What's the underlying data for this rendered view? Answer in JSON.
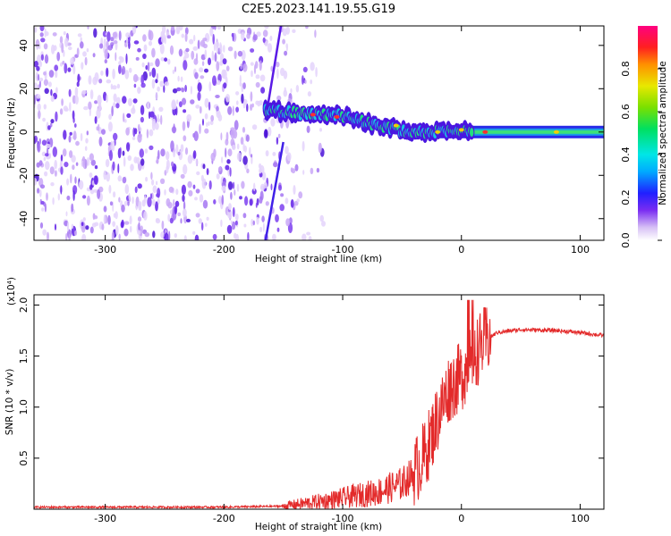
{
  "title": "C2E5.2023.141.19.55.G19",
  "chart_data": [
    {
      "type": "heatmap",
      "xlabel": "Height of straight line (km)",
      "ylabel": "Frequency (Hz)",
      "xlim": [
        -360,
        120
      ],
      "ylim": [
        -50,
        49
      ],
      "x_ticks": [
        -300,
        -200,
        -100,
        0,
        100
      ],
      "y_ticks": [
        -40,
        -20,
        0,
        20,
        40
      ],
      "colorbar": {
        "label": "Normalized spectral amplitude",
        "range": [
          0,
          1
        ],
        "ticks": [
          0.0,
          0.2,
          0.4,
          0.6,
          0.8
        ],
        "tick_labels": [
          "0.0",
          "0.2",
          "0.4",
          "0.6",
          "0.8"
        ]
      },
      "features": {
        "noise_region_x": [
          -360,
          -140
        ],
        "signal_line": [
          {
            "x": -165,
            "freq": 10
          },
          {
            "x": -140,
            "freq": 9
          },
          {
            "x": -110,
            "freq": 8
          },
          {
            "x": -95,
            "freq": 7
          },
          {
            "x": -80,
            "freq": 4
          },
          {
            "x": -60,
            "freq": 2
          },
          {
            "x": -45,
            "freq": 0
          },
          {
            "x": -25,
            "freq": 0
          },
          {
            "x": 0,
            "freq": 1
          },
          {
            "x": 50,
            "freq": 0
          },
          {
            "x": 120,
            "freq": 0
          }
        ]
      }
    },
    {
      "type": "line",
      "xlabel": "Height of straight line (km)",
      "ylabel": "SNR (10 * v/v)",
      "y_multiplier": "(x10⁴)",
      "xlim": [
        -360,
        120
      ],
      "ylim": [
        0,
        2.1
      ],
      "x_ticks": [
        -300,
        -200,
        -100,
        0,
        100
      ],
      "y_ticks": [
        0.5,
        1.0,
        1.5,
        2.0
      ],
      "y_tick_labels": [
        "0.5",
        "1.0",
        "1.5",
        "2.0"
      ],
      "series": [
        {
          "color": "#e32a2a",
          "x": [
            -360,
            -300,
            -200,
            -150,
            -130,
            -110,
            -90,
            -70,
            -50,
            -40,
            -30,
            -20,
            -10,
            0,
            10,
            20,
            30,
            50,
            80,
            100,
            120
          ],
          "y": [
            0.02,
            0.02,
            0.02,
            0.03,
            0.06,
            0.09,
            0.13,
            0.17,
            0.25,
            0.35,
            0.55,
            0.9,
            1.2,
            1.3,
            1.5,
            1.65,
            1.73,
            1.76,
            1.75,
            1.73,
            1.7
          ]
        }
      ]
    }
  ]
}
